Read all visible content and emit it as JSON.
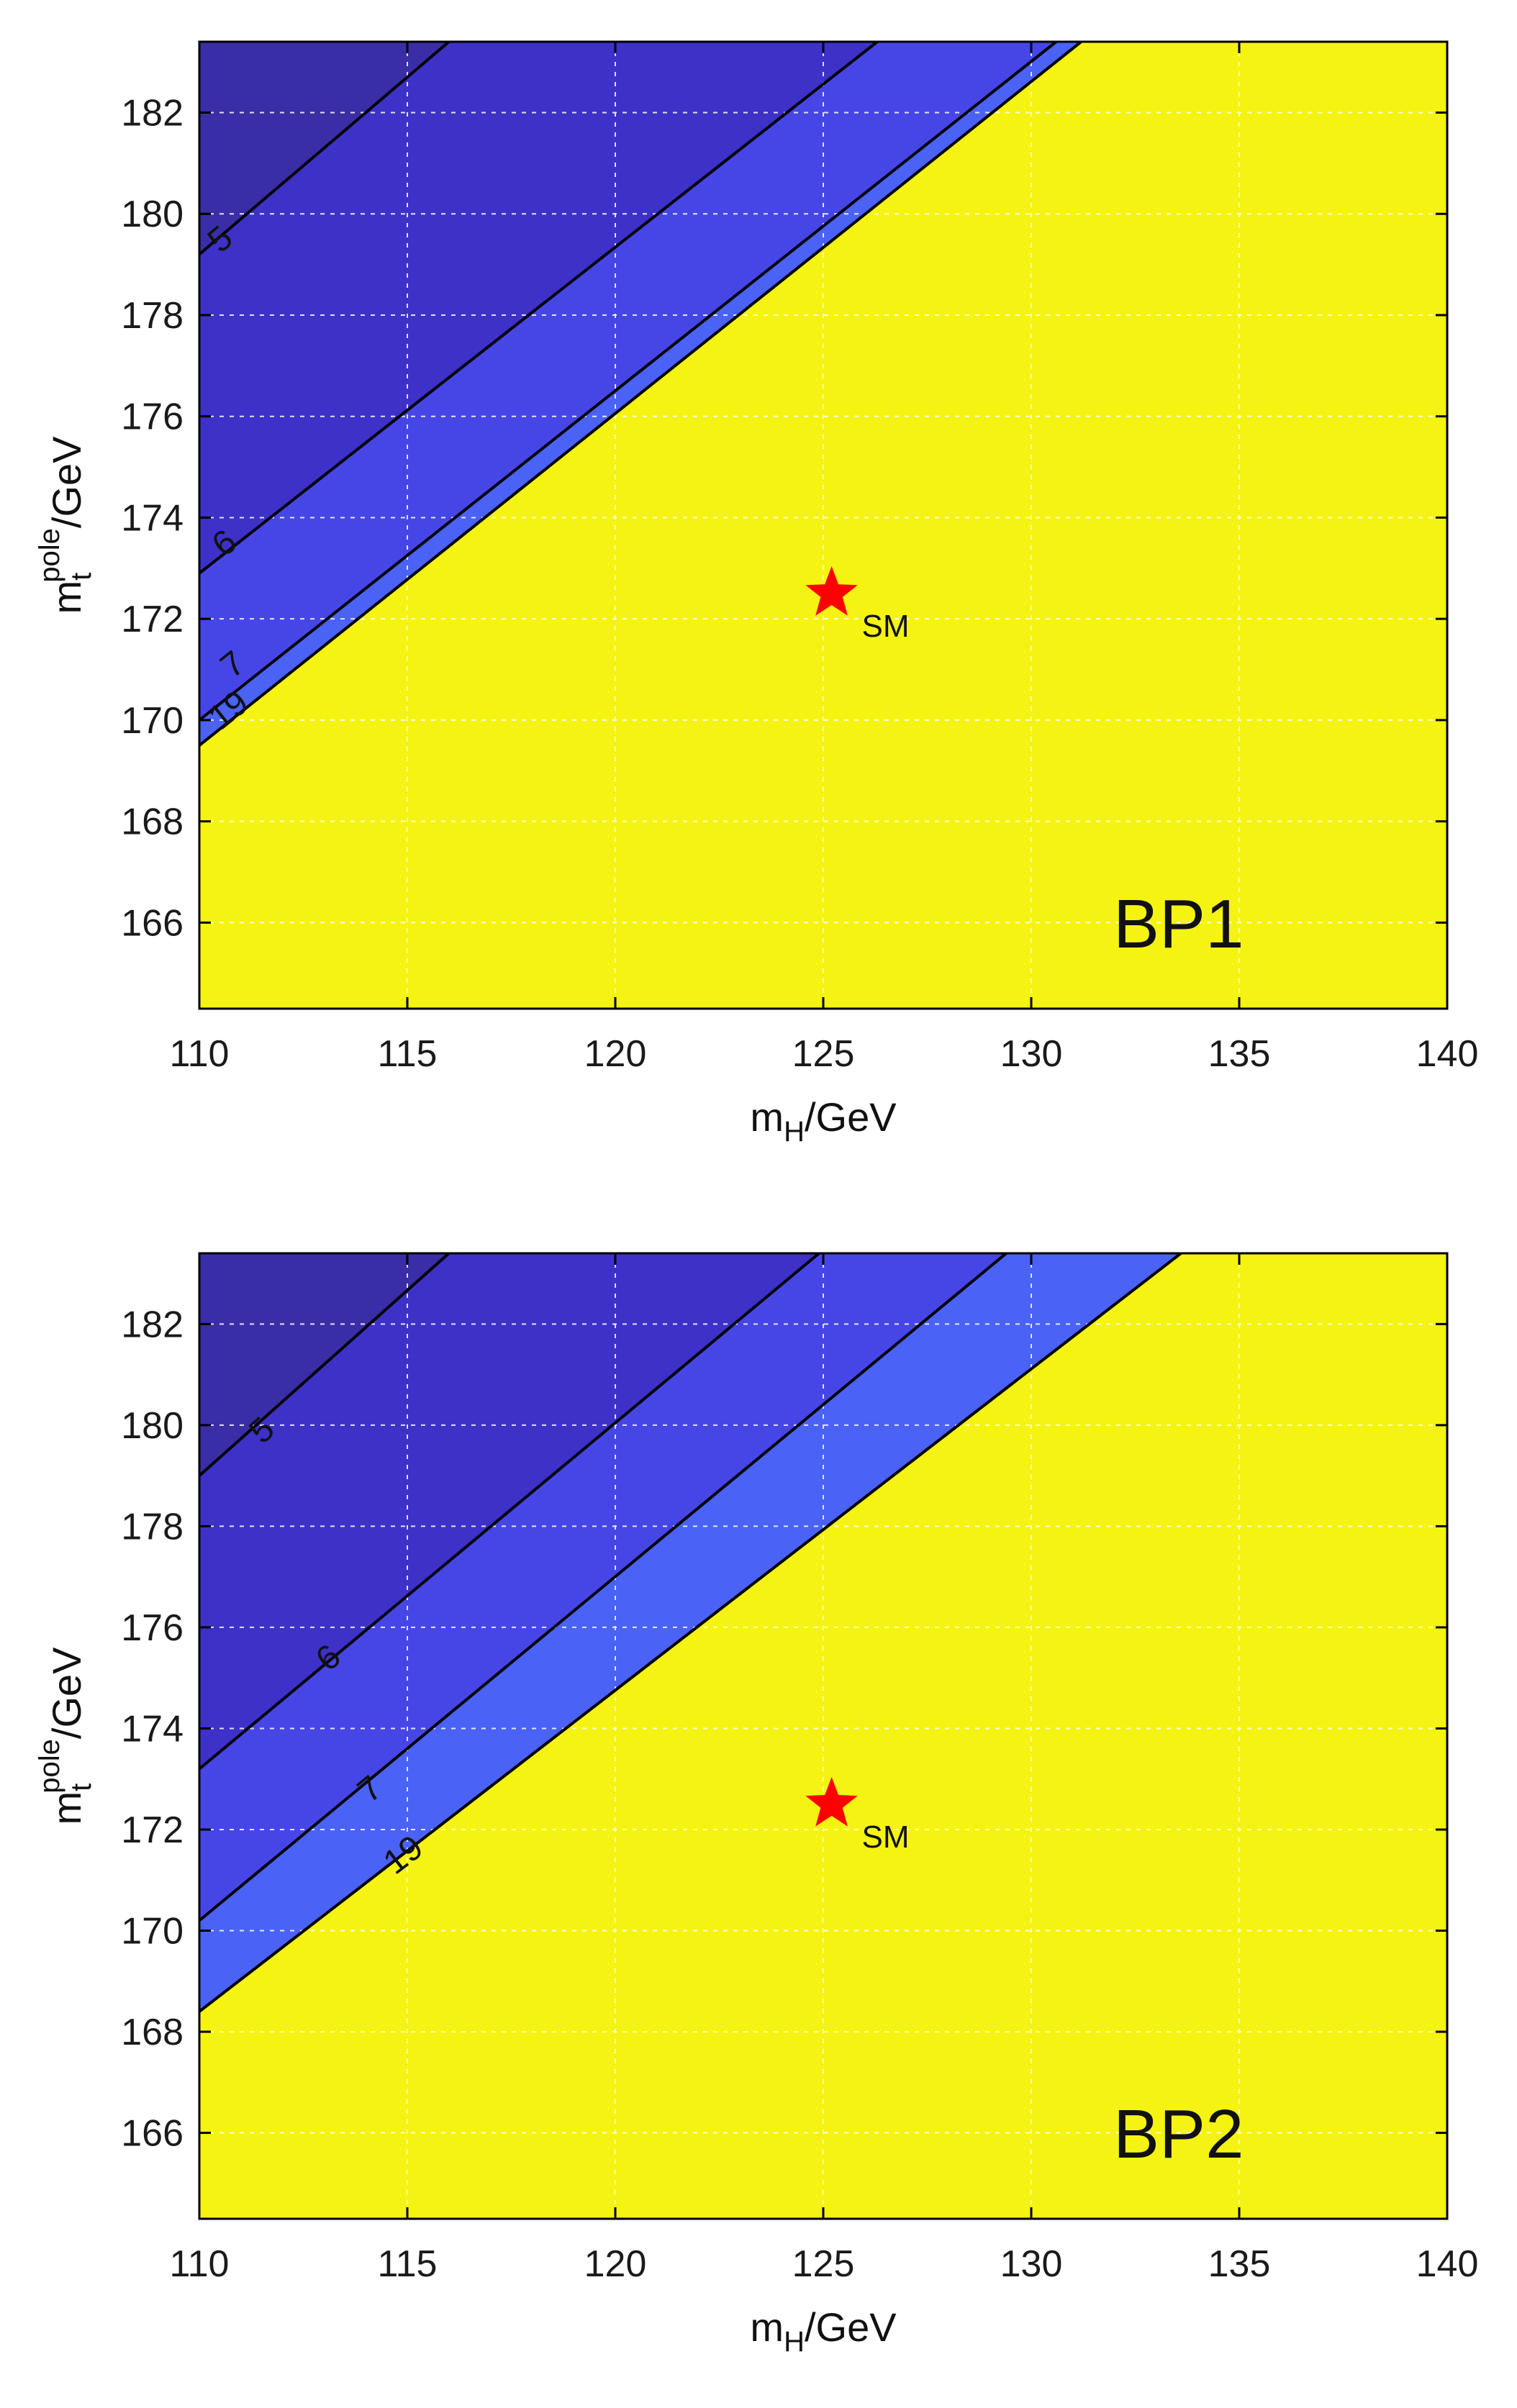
{
  "chart_data": [
    {
      "type": "contour",
      "panel_label": "BP1",
      "xlabel": "m_H/GeV",
      "ylabel": "m_t^pole/GeV",
      "xlabel_main": "m",
      "xlabel_sub": "H",
      "xlabel_rest": "/GeV",
      "ylabel_main": "m",
      "ylabel_sub": "t",
      "ylabel_sup": "pole",
      "ylabel_rest": "/GeV",
      "xlim": [
        110,
        140
      ],
      "ylim": [
        164.3,
        183.4
      ],
      "xticks": [
        110,
        115,
        120,
        125,
        130,
        135,
        140
      ],
      "yticks": [
        166,
        168,
        170,
        172,
        174,
        176,
        178,
        180,
        182
      ],
      "grid": true,
      "background_color": "#f5f312",
      "region_colors": [
        "#3a2ea6",
        "#3d31c8",
        "#4646e6",
        "#4a62f5"
      ],
      "contours": [
        {
          "level": 5,
          "label": "5",
          "points": [
            [
              110,
              179.2
            ],
            [
              116,
              183.4
            ]
          ],
          "label_at": [
            110.5,
            179.5
          ]
        },
        {
          "level": 6,
          "label": "6",
          "points": [
            [
              110,
              172.9
            ],
            [
              126.3,
              183.4
            ]
          ],
          "label_at": [
            110.6,
            173.5
          ]
        },
        {
          "level": 7,
          "label": "7",
          "points": [
            [
              110,
              170.0
            ],
            [
              130.6,
              183.4
            ]
          ],
          "label_at": [
            110.8,
            171.1
          ]
        },
        {
          "level": 19,
          "label": "19",
          "points": [
            [
              110,
              169.5
            ],
            [
              131.2,
              183.4
            ]
          ],
          "label_at": [
            110.7,
            170.2
          ]
        }
      ],
      "marker": {
        "x": 125.2,
        "y": 172.5,
        "symbol": "star",
        "color": "#ff0000",
        "label": "SM"
      }
    },
    {
      "type": "contour",
      "panel_label": "BP2",
      "xlabel": "m_H/GeV",
      "ylabel": "m_t^pole/GeV",
      "xlabel_main": "m",
      "xlabel_sub": "H",
      "xlabel_rest": "/GeV",
      "ylabel_main": "m",
      "ylabel_sub": "t",
      "ylabel_sup": "pole",
      "ylabel_rest": "/GeV",
      "xlim": [
        110,
        140
      ],
      "ylim": [
        164.3,
        183.4
      ],
      "xticks": [
        110,
        115,
        120,
        125,
        130,
        135,
        140
      ],
      "yticks": [
        166,
        168,
        170,
        172,
        174,
        176,
        178,
        180,
        182
      ],
      "grid": true,
      "background_color": "#f5f312",
      "region_colors": [
        "#3a2ea6",
        "#3d31c8",
        "#4646e6",
        "#4a62f5"
      ],
      "contours": [
        {
          "level": 5,
          "label": "5",
          "points": [
            [
              110,
              179.0
            ],
            [
              116.0,
              183.4
            ]
          ],
          "label_at": [
            111.5,
            179.9
          ]
        },
        {
          "level": 6,
          "label": "6",
          "points": [
            [
              110,
              173.2
            ],
            [
              124.9,
              183.4
            ]
          ],
          "label_at": [
            113.1,
            175.4
          ]
        },
        {
          "level": 7,
          "label": "7",
          "points": [
            [
              110,
              170.2
            ],
            [
              129.4,
              183.4
            ]
          ],
          "label_at": [
            114.1,
            172.8
          ]
        },
        {
          "level": 19,
          "label": "19",
          "points": [
            [
              110,
              168.4
            ],
            [
              133.6,
              183.4
            ]
          ],
          "label_at": [
            114.9,
            171.5
          ]
        }
      ],
      "marker": {
        "x": 125.2,
        "y": 172.5,
        "symbol": "star",
        "color": "#ff0000",
        "label": "SM"
      }
    }
  ]
}
